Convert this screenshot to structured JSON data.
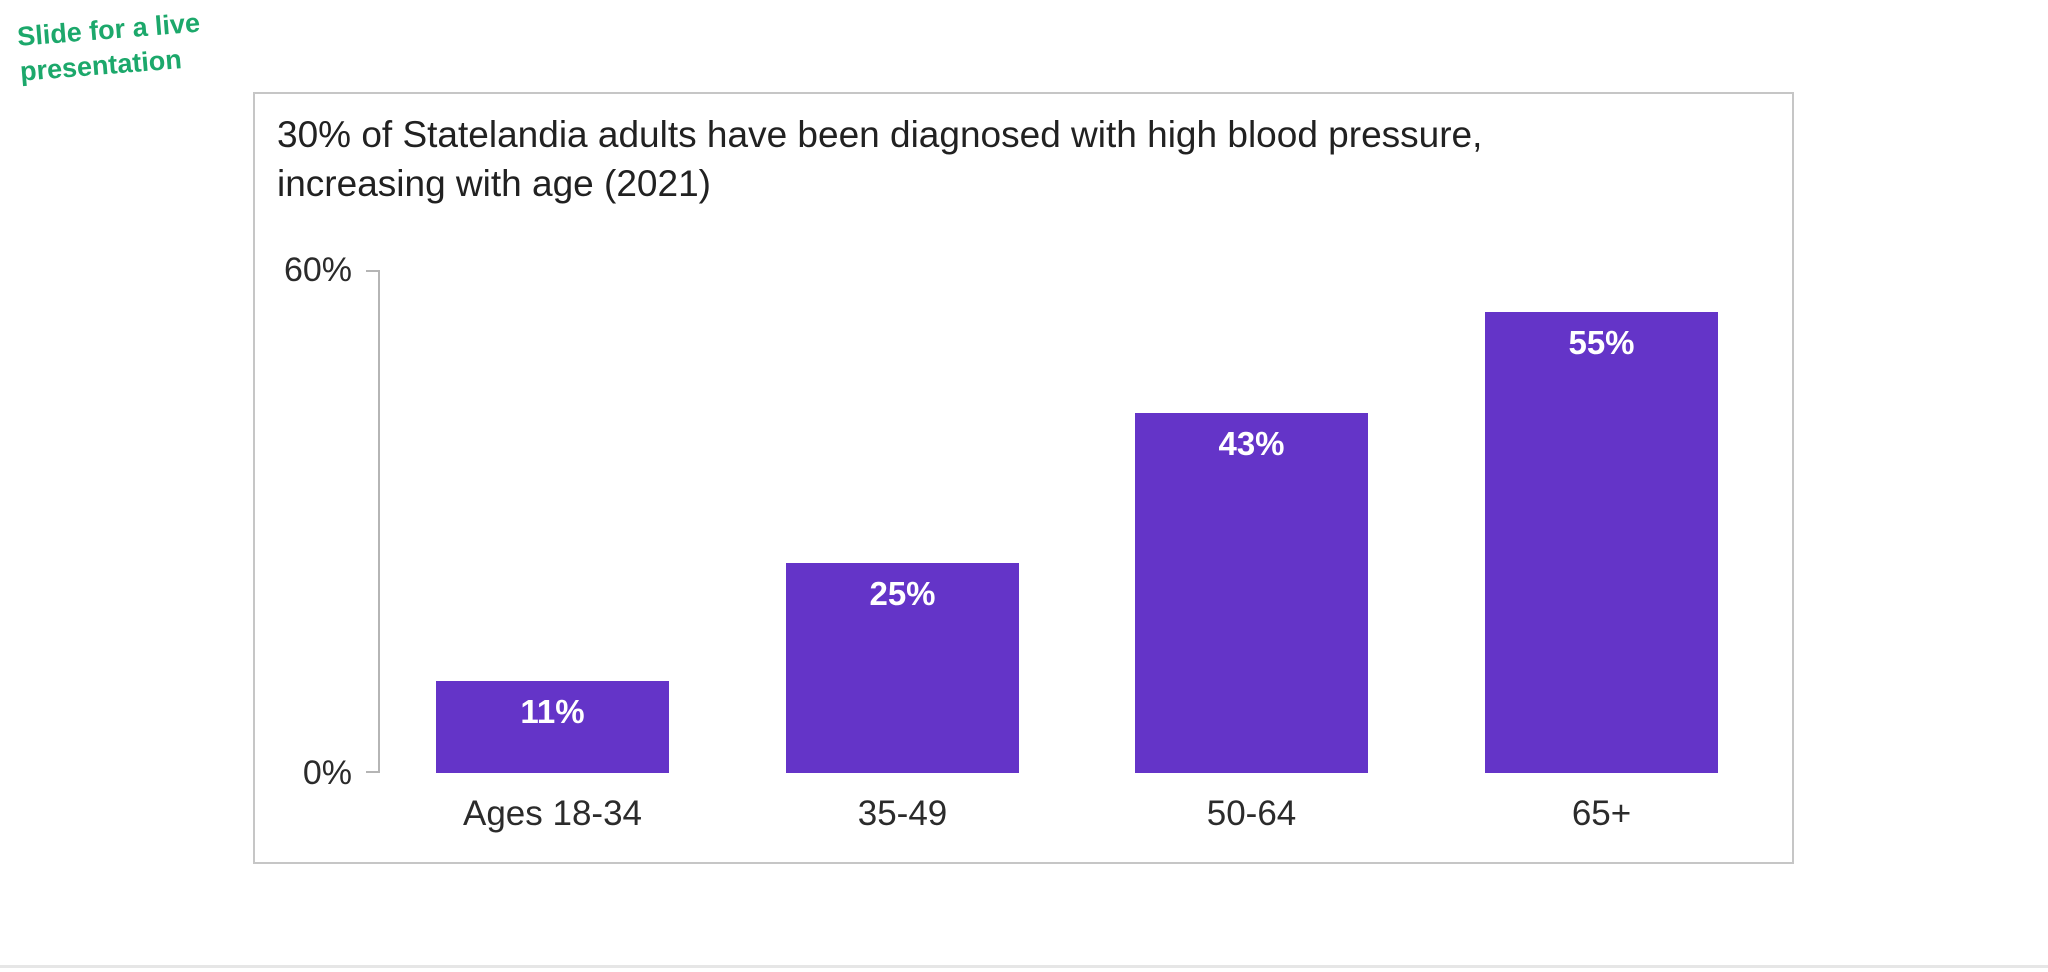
{
  "annotation": {
    "text": "Slide for a live\npresentation",
    "color": "#1ca86b"
  },
  "chart_data": {
    "type": "bar",
    "title": "30% of Statelandia adults have been diagnosed with high blood pressure,\nincreasing with age (2021)",
    "categories": [
      "Ages 18-34",
      "35-49",
      "50-64",
      "65+"
    ],
    "values": [
      11,
      25,
      43,
      55
    ],
    "value_labels": [
      "11%",
      "25%",
      "43%",
      "55%"
    ],
    "xlabel": "",
    "ylabel": "",
    "ylim": [
      0,
      60
    ],
    "yticks": [
      "0%",
      "60%"
    ],
    "grid": false,
    "legend": false,
    "bar_color": "#6434c8",
    "value_label_color": "#ffffff",
    "axis_color": "#b5b5b5"
  }
}
